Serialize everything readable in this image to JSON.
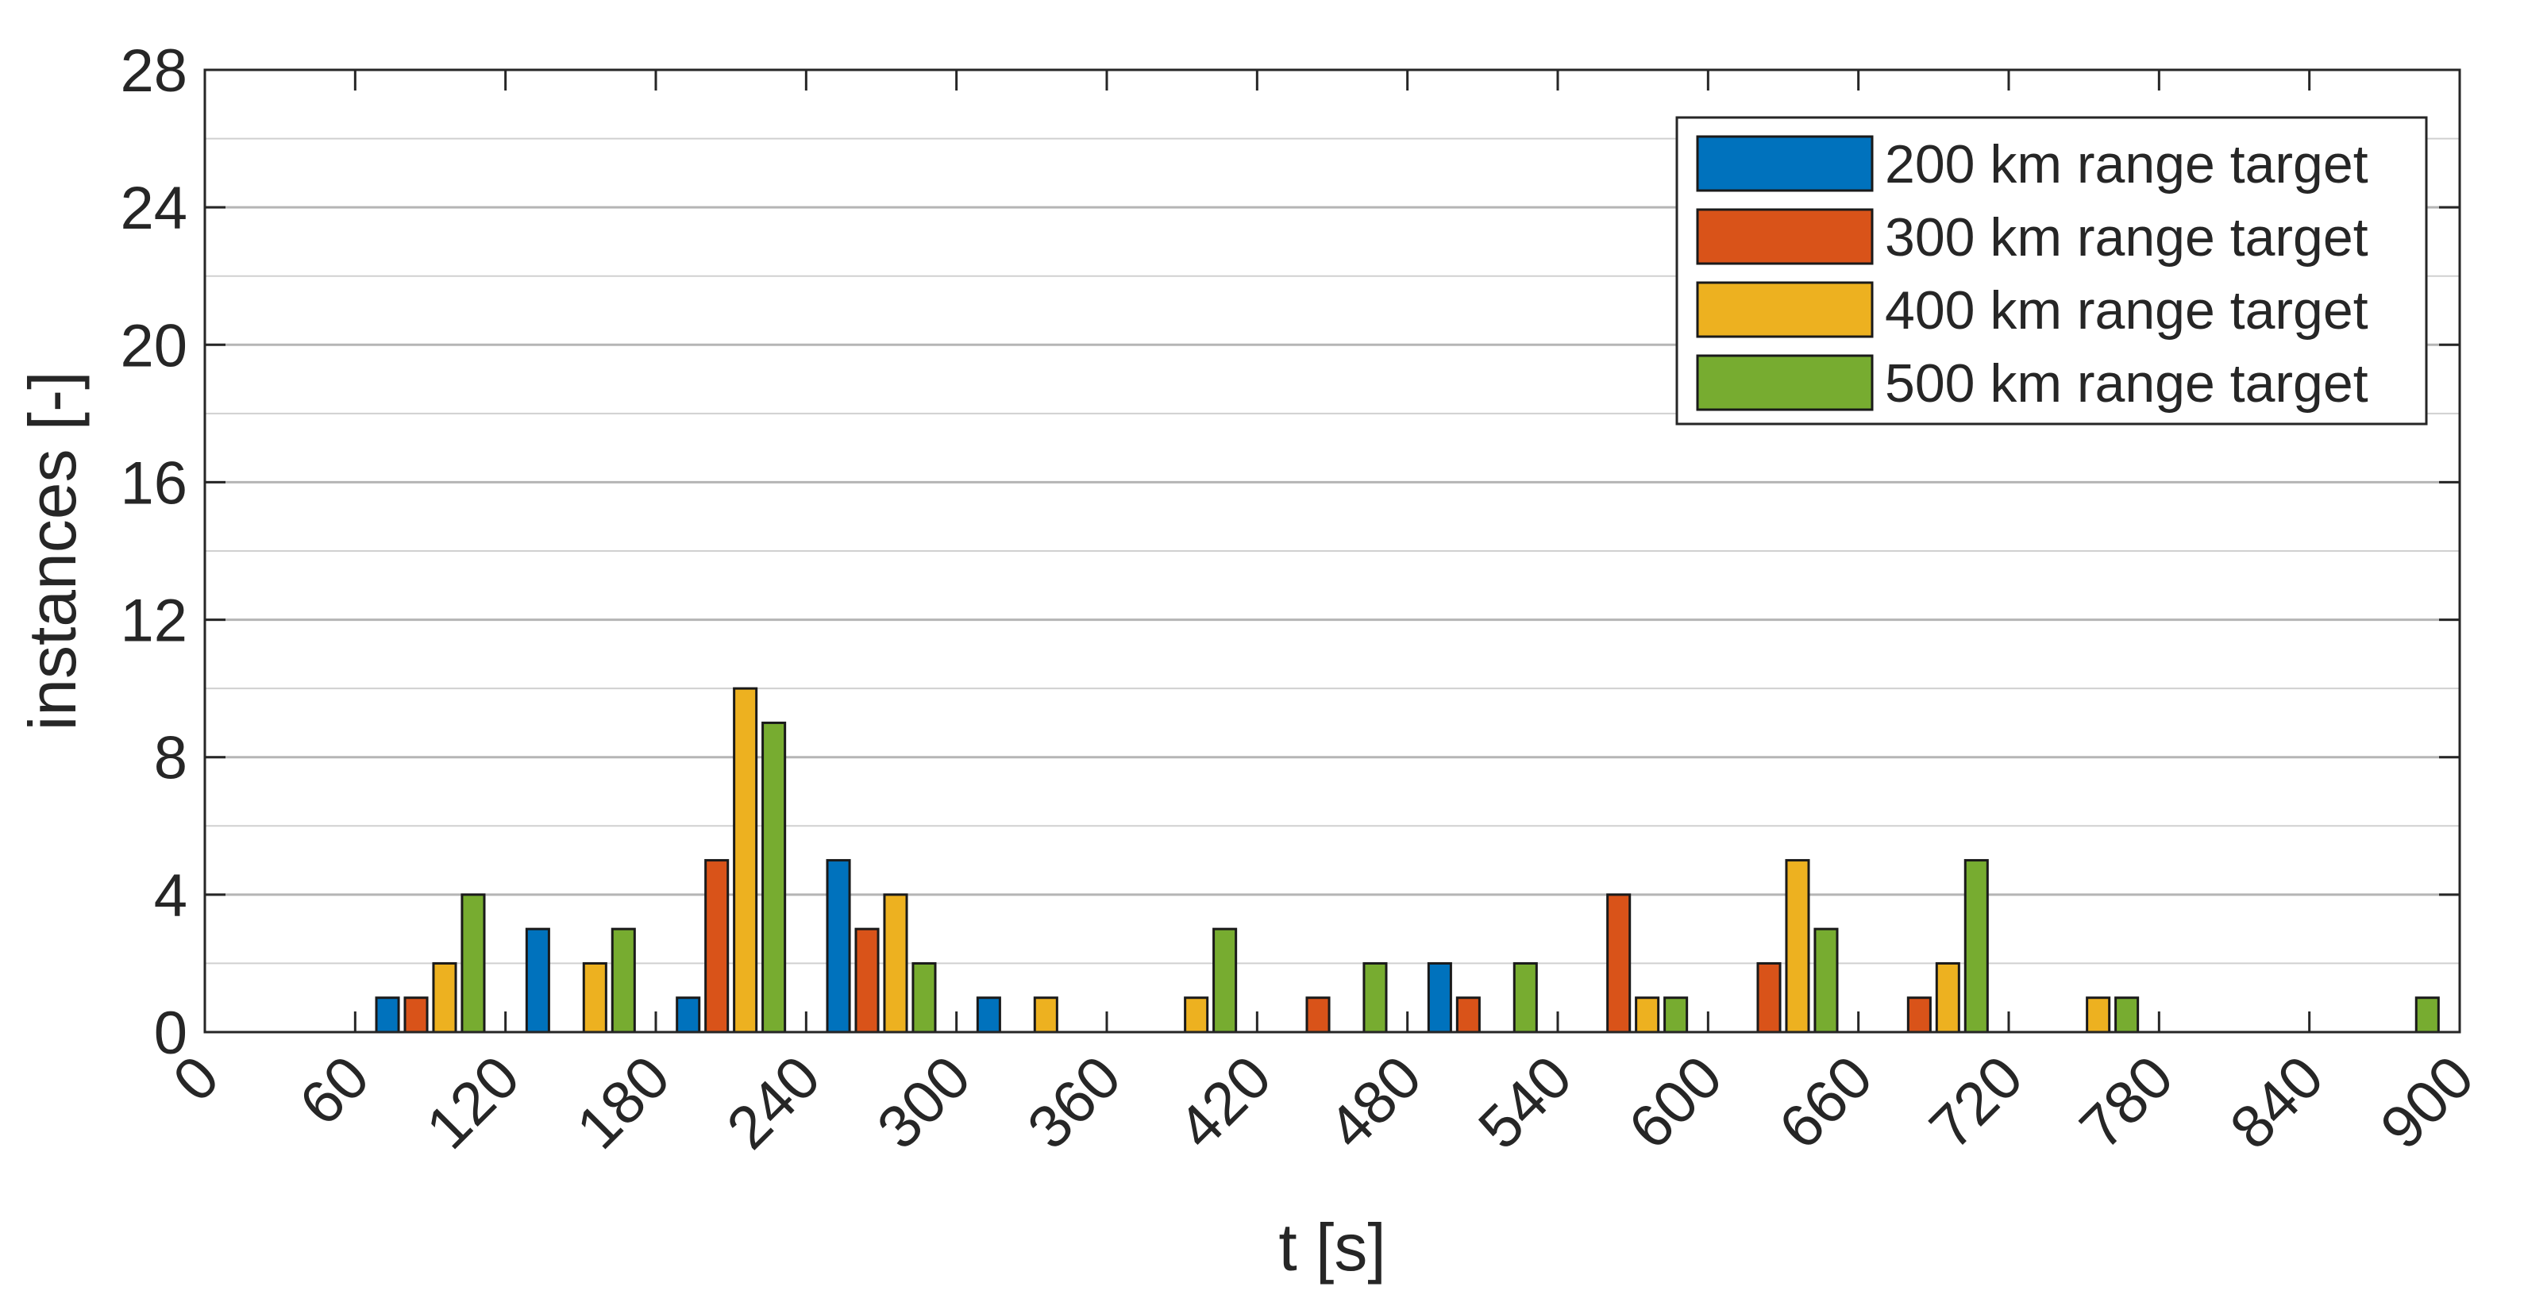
{
  "chart_data": {
    "type": "bar",
    "xlabel": "t [s]",
    "ylabel": "instances [-]",
    "xlim": [
      0,
      900
    ],
    "ylim": [
      0,
      28
    ],
    "xticks": [
      0,
      60,
      120,
      180,
      240,
      300,
      360,
      420,
      480,
      540,
      600,
      660,
      720,
      780,
      840,
      900
    ],
    "yticks": [
      0,
      4,
      8,
      12,
      16,
      20,
      24,
      28
    ],
    "grid": "horizontal",
    "legend_position": "top-right",
    "bin_width": 60,
    "categories": [
      30,
      90,
      150,
      210,
      270,
      330,
      390,
      450,
      510,
      570,
      630,
      690,
      750,
      810,
      870
    ],
    "series": [
      {
        "name": "200 km range target",
        "color": "#0072BD",
        "values": [
          0,
          1,
          3,
          1,
          5,
          1,
          0,
          0,
          2,
          0,
          0,
          0,
          0,
          0,
          0
        ]
      },
      {
        "name": "300 km range target",
        "color": "#D95319",
        "values": [
          0,
          1,
          0,
          5,
          3,
          0,
          0,
          1,
          1,
          4,
          2,
          1,
          0,
          0,
          0
        ]
      },
      {
        "name": "400 km range target",
        "color": "#EDB120",
        "values": [
          0,
          2,
          2,
          10,
          4,
          1,
          1,
          0,
          0,
          1,
          5,
          2,
          1,
          0,
          0
        ]
      },
      {
        "name": "500 km range target",
        "color": "#77AC30",
        "values": [
          0,
          4,
          3,
          9,
          2,
          0,
          3,
          2,
          2,
          1,
          3,
          5,
          1,
          0,
          1
        ]
      }
    ]
  }
}
